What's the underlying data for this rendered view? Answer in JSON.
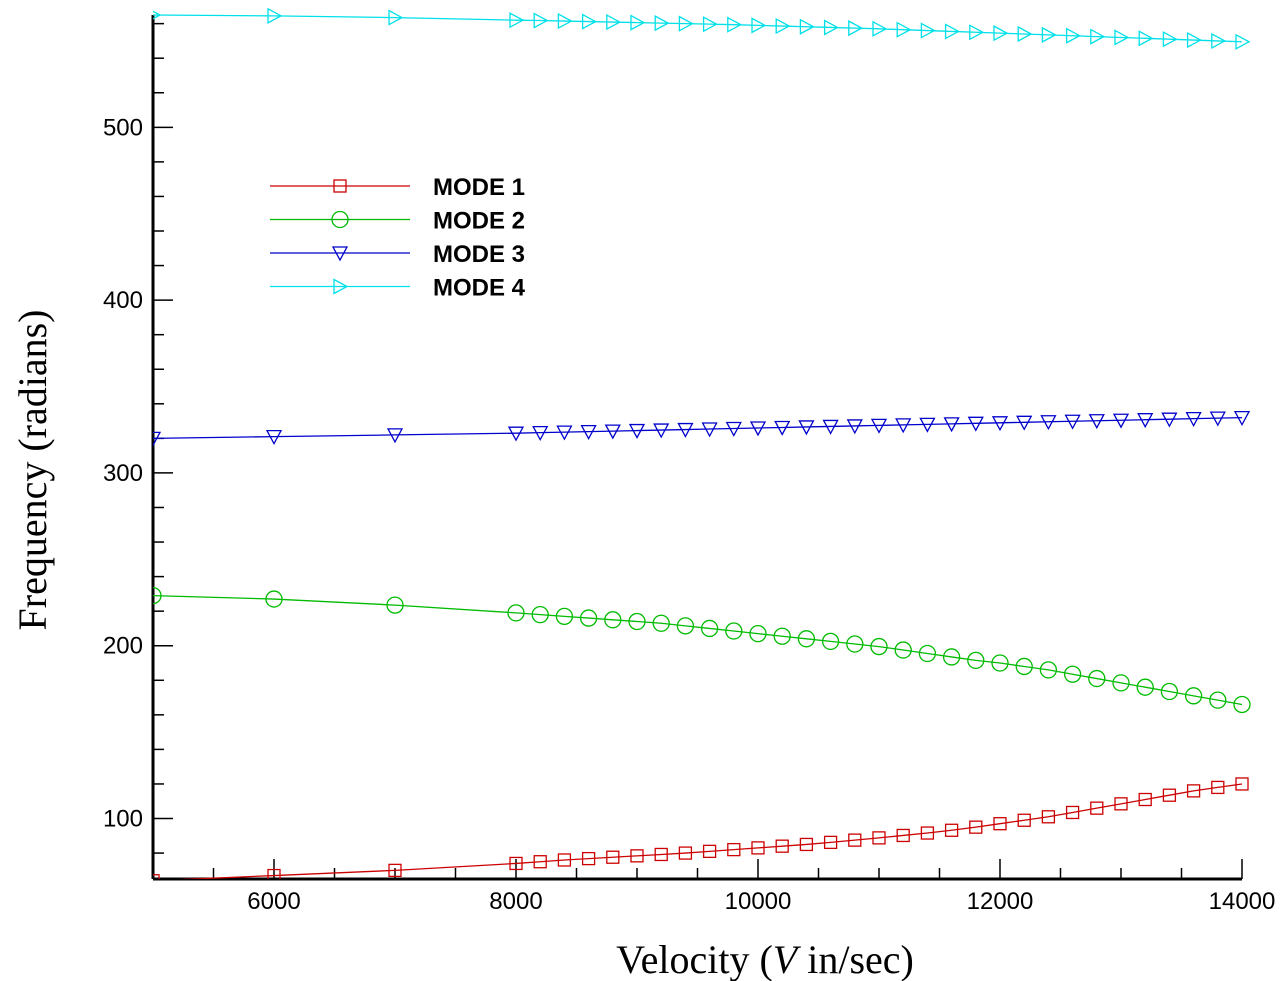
{
  "chart_data": {
    "type": "line",
    "xlabel": {
      "prefix": "Velocity (",
      "var": "V",
      "suffix": " in/sec)"
    },
    "ylabel": "Frequency (radians)",
    "xlim": [
      5000,
      14000
    ],
    "ylim": [
      65,
      565
    ],
    "xticks": [
      6000,
      8000,
      10000,
      12000,
      14000
    ],
    "yticks": [
      100,
      200,
      300,
      400,
      500
    ],
    "grid": false,
    "legend_position": "upper-left",
    "x": [
      5000,
      6000,
      7000,
      8000,
      8200,
      8400,
      8600,
      8800,
      9000,
      9200,
      9400,
      9600,
      9800,
      10000,
      10200,
      10400,
      10600,
      10800,
      11000,
      11200,
      11400,
      11600,
      11800,
      12000,
      12200,
      12400,
      12600,
      12800,
      13000,
      13200,
      13400,
      13600,
      13800,
      14000
    ],
    "series": [
      {
        "name": "MODE 1",
        "color": "#cc0000",
        "marker": "square",
        "values": [
          64,
          67,
          70,
          74,
          75,
          76,
          76.8,
          77.6,
          78.4,
          79.2,
          80,
          81,
          82,
          83,
          84,
          85,
          86.2,
          87.5,
          88.8,
          90.2,
          91.6,
          93.2,
          95,
          97,
          99,
          101,
          103.5,
          106,
          108.5,
          111,
          113.5,
          116,
          118,
          120
        ]
      },
      {
        "name": "MODE 2",
        "color": "#00bb00",
        "marker": "circle",
        "values": [
          229,
          227,
          223.5,
          219,
          218,
          217,
          216,
          215,
          214,
          213,
          211.5,
          210,
          208.5,
          207,
          205.5,
          204,
          202.5,
          201,
          199.5,
          197.5,
          195.5,
          193.5,
          191.5,
          190,
          188,
          186,
          183.5,
          181,
          178.5,
          176,
          173.5,
          171,
          168.5,
          166
        ]
      },
      {
        "name": "MODE 3",
        "color": "#0000cc",
        "marker": "triangle-down",
        "values": [
          320,
          321,
          322,
          323,
          323.3,
          323.6,
          323.9,
          324.2,
          324.5,
          324.8,
          325.1,
          325.4,
          325.7,
          326,
          326.3,
          326.6,
          326.9,
          327.2,
          327.5,
          327.8,
          328.1,
          328.4,
          328.7,
          329,
          329.3,
          329.6,
          329.9,
          330.2,
          330.5,
          330.8,
          331.1,
          331.4,
          331.7,
          332
        ]
      },
      {
        "name": "MODE 4",
        "color": "#00e0e8",
        "marker": "triangle-right",
        "values": [
          565,
          564.5,
          563.5,
          562,
          561.8,
          561.5,
          561.2,
          560.9,
          560.6,
          560.3,
          560,
          559.7,
          559.4,
          559,
          558.6,
          558.2,
          557.8,
          557.4,
          557,
          556.5,
          556,
          555.5,
          555,
          554.5,
          554,
          553.5,
          553,
          552.5,
          552,
          551.5,
          551,
          550.5,
          550,
          549.5
        ]
      }
    ]
  }
}
